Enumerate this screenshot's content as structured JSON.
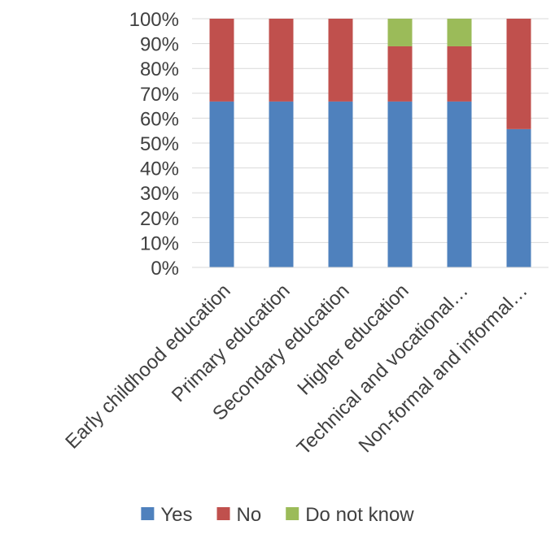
{
  "chart_data": {
    "type": "bar",
    "stacked": true,
    "percent": true,
    "categories": [
      "Early childhood education",
      "Primary education",
      "Secondary education",
      "Higher education",
      "Technical and vocational…",
      "Non-formal and informal…"
    ],
    "series": [
      {
        "name": "Yes",
        "color": "#4F81BD",
        "values": [
          0.667,
          0.667,
          0.667,
          0.667,
          0.667,
          0.556
        ]
      },
      {
        "name": "No",
        "color": "#C0504D",
        "values": [
          0.333,
          0.333,
          0.333,
          0.222,
          0.222,
          0.444
        ]
      },
      {
        "name": "Do not know",
        "color": "#9BBB59",
        "values": [
          0,
          0,
          0,
          0.111,
          0.111,
          0
        ]
      }
    ],
    "ylim": [
      0,
      1
    ],
    "yticks": [
      0,
      0.1,
      0.2,
      0.3,
      0.4,
      0.5,
      0.6,
      0.7,
      0.8,
      0.9,
      1.0
    ],
    "ytick_labels": [
      "0%",
      "10%",
      "20%",
      "30%",
      "40%",
      "50%",
      "60%",
      "70%",
      "80%",
      "90%",
      "100%"
    ],
    "gridlines": true,
    "legend_position": "bottom",
    "title": "",
    "xlabel": "",
    "ylabel": ""
  }
}
